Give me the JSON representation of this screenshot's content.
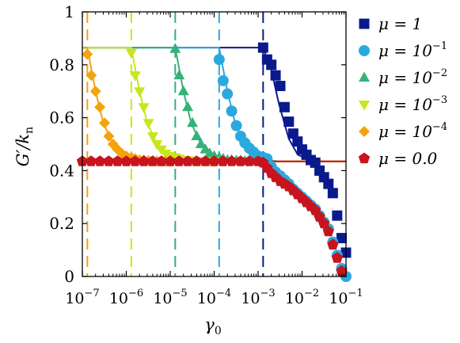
{
  "chart_data": {
    "type": "scatter",
    "title": "",
    "xlabel": "γ",
    "xlabel_sub": "0",
    "ylabel": "G′/k",
    "ylabel_sub": "n",
    "xscale": "log",
    "xlim": [
      1e-07,
      0.1
    ],
    "ylim": [
      0,
      1
    ],
    "grid": false,
    "legend_position": "right",
    "x_ticks": [
      {
        "value": 1e-07,
        "base": "10",
        "exp": "−7"
      },
      {
        "value": 1e-06,
        "base": "10",
        "exp": "−6"
      },
      {
        "value": 1e-05,
        "base": "10",
        "exp": "−5"
      },
      {
        "value": 0.0001,
        "base": "10",
        "exp": "−4"
      },
      {
        "value": 0.001,
        "base": "10",
        "exp": "−3"
      },
      {
        "value": 0.01,
        "base": "10",
        "exp": "−2"
      },
      {
        "value": 0.1,
        "base": "10",
        "exp": "−1"
      }
    ],
    "y_ticks": [
      {
        "value": 0,
        "label": "0"
      },
      {
        "value": 0.2,
        "label": "0.2"
      },
      {
        "value": 0.4,
        "label": "0.4"
      },
      {
        "value": 0.6,
        "label": "0.6"
      },
      {
        "value": 0.8,
        "label": "0.8"
      },
      {
        "value": 1,
        "label": "1"
      }
    ],
    "series": [
      {
        "name": "μ = 1",
        "label_main": "μ = 1",
        "label_exp": "",
        "color": "#0a1a8c",
        "marker": "square",
        "critical_strain": 0.0013,
        "points": [
          [
            0.0013,
            0.865
          ],
          [
            0.0016,
            0.82
          ],
          [
            0.002,
            0.8
          ],
          [
            0.0025,
            0.76
          ],
          [
            0.0032,
            0.72
          ],
          [
            0.004,
            0.64
          ],
          [
            0.005,
            0.585
          ],
          [
            0.0063,
            0.54
          ],
          [
            0.0079,
            0.51
          ],
          [
            0.01,
            0.48
          ],
          [
            0.0126,
            0.46
          ],
          [
            0.0158,
            0.44
          ],
          [
            0.02,
            0.43
          ],
          [
            0.025,
            0.4
          ],
          [
            0.0316,
            0.375
          ],
          [
            0.0398,
            0.35
          ],
          [
            0.0501,
            0.315
          ],
          [
            0.063,
            0.23
          ],
          [
            0.0794,
            0.145
          ],
          [
            0.1,
            0.09
          ]
        ],
        "curve": [
          [
            1e-07,
            0.865
          ],
          [
            0.0013,
            0.865
          ],
          [
            0.002,
            0.78
          ],
          [
            0.003,
            0.65
          ],
          [
            0.005,
            0.52
          ],
          [
            0.008,
            0.46
          ],
          [
            0.015,
            0.44
          ],
          [
            0.03,
            0.435
          ],
          [
            0.1,
            0.435
          ]
        ]
      },
      {
        "name": "μ = 10^-1",
        "label_main": "μ = 10",
        "label_exp": "−1",
        "color": "#2aa9df",
        "marker": "circle",
        "critical_strain": 0.00013,
        "points": [
          [
            0.00013,
            0.82
          ],
          [
            0.00016,
            0.74
          ],
          [
            0.0002,
            0.69
          ],
          [
            0.00025,
            0.625
          ],
          [
            0.00032,
            0.57
          ],
          [
            0.0004,
            0.53
          ],
          [
            0.0005,
            0.505
          ],
          [
            0.00063,
            0.485
          ],
          [
            0.00079,
            0.47
          ],
          [
            0.001,
            0.455
          ],
          [
            0.0013,
            0.45
          ],
          [
            0.0016,
            0.445
          ],
          [
            0.002,
            0.415
          ],
          [
            0.0025,
            0.395
          ],
          [
            0.0032,
            0.38
          ],
          [
            0.004,
            0.365
          ],
          [
            0.005,
            0.35
          ],
          [
            0.0063,
            0.33
          ],
          [
            0.0079,
            0.315
          ],
          [
            0.01,
            0.3
          ],
          [
            0.0126,
            0.285
          ],
          [
            0.0158,
            0.27
          ],
          [
            0.02,
            0.255
          ],
          [
            0.025,
            0.23
          ],
          [
            0.0316,
            0.205
          ],
          [
            0.0398,
            0.18
          ],
          [
            0.0501,
            0.13
          ],
          [
            0.063,
            0.08
          ],
          [
            0.0794,
            0.03
          ],
          [
            0.1,
            0.0
          ]
        ],
        "curve": [
          [
            1e-07,
            0.865
          ],
          [
            0.00013,
            0.865
          ],
          [
            0.0002,
            0.7
          ],
          [
            0.0003,
            0.58
          ],
          [
            0.0005,
            0.5
          ],
          [
            0.0008,
            0.46
          ],
          [
            0.0015,
            0.44
          ],
          [
            0.003,
            0.435
          ],
          [
            0.1,
            0.435
          ]
        ]
      },
      {
        "name": "μ = 10^-2",
        "label_main": "μ = 10",
        "label_exp": "−2",
        "color": "#34b27a",
        "marker": "triangle-up",
        "critical_strain": 1.3e-05,
        "points": [
          [
            1.3e-05,
            0.86
          ],
          [
            1.6e-05,
            0.76
          ],
          [
            2e-05,
            0.7
          ],
          [
            2.5e-05,
            0.64
          ],
          [
            3.2e-05,
            0.58
          ],
          [
            4e-05,
            0.53
          ],
          [
            5e-05,
            0.5
          ],
          [
            6.3e-05,
            0.48
          ],
          [
            7.9e-05,
            0.465
          ],
          [
            0.0001,
            0.455
          ],
          [
            0.00013,
            0.45
          ],
          [
            0.00016,
            0.445
          ],
          [
            0.0002,
            0.44
          ],
          [
            0.00025,
            0.44
          ],
          [
            0.00032,
            0.438
          ],
          [
            0.0004,
            0.437
          ],
          [
            0.0005,
            0.436
          ],
          [
            0.00063,
            0.436
          ],
          [
            0.00079,
            0.435
          ],
          [
            0.001,
            0.435
          ]
        ],
        "curve": [
          [
            1e-07,
            0.865
          ],
          [
            1.3e-05,
            0.865
          ],
          [
            2e-05,
            0.7
          ],
          [
            3e-05,
            0.58
          ],
          [
            5e-05,
            0.5
          ],
          [
            8e-05,
            0.46
          ],
          [
            0.00015,
            0.44
          ],
          [
            0.0003,
            0.435
          ],
          [
            0.1,
            0.435
          ]
        ]
      },
      {
        "name": "μ = 10^-3",
        "label_main": "μ = 10",
        "label_exp": "−3",
        "color": "#c8e619",
        "marker": "triangle-down",
        "critical_strain": 1.3e-06,
        "points": [
          [
            1.3e-06,
            0.845
          ],
          [
            1.6e-06,
            0.76
          ],
          [
            2e-06,
            0.7
          ],
          [
            2.5e-06,
            0.64
          ],
          [
            3.2e-06,
            0.58
          ],
          [
            4e-06,
            0.53
          ],
          [
            5e-06,
            0.5
          ],
          [
            6.3e-06,
            0.48
          ],
          [
            7.9e-06,
            0.465
          ],
          [
            1e-05,
            0.455
          ],
          [
            1.3e-05,
            0.45
          ],
          [
            1.6e-05,
            0.445
          ],
          [
            2e-05,
            0.44
          ],
          [
            2.5e-05,
            0.44
          ],
          [
            3.2e-05,
            0.438
          ],
          [
            4e-05,
            0.437
          ],
          [
            5e-05,
            0.436
          ],
          [
            6.3e-05,
            0.436
          ],
          [
            7.9e-05,
            0.435
          ],
          [
            0.0001,
            0.435
          ]
        ],
        "curve": [
          [
            1e-07,
            0.865
          ],
          [
            1.3e-06,
            0.865
          ],
          [
            2e-06,
            0.7
          ],
          [
            3e-06,
            0.58
          ],
          [
            5e-06,
            0.5
          ],
          [
            8e-06,
            0.46
          ],
          [
            1.5e-05,
            0.44
          ],
          [
            3e-05,
            0.435
          ],
          [
            0.1,
            0.435
          ]
        ]
      },
      {
        "name": "μ = 10^-4",
        "label_main": "μ = 10",
        "label_exp": "−4",
        "color": "#f5a30a",
        "marker": "diamond",
        "critical_strain": 1.3e-07,
        "points": [
          [
            1.3e-07,
            0.84
          ],
          [
            1.6e-07,
            0.76
          ],
          [
            2e-07,
            0.7
          ],
          [
            2.5e-07,
            0.64
          ],
          [
            3.2e-07,
            0.58
          ],
          [
            4e-07,
            0.53
          ],
          [
            5e-07,
            0.5
          ],
          [
            6.3e-07,
            0.48
          ],
          [
            7.9e-07,
            0.465
          ],
          [
            1e-06,
            0.455
          ],
          [
            1.3e-06,
            0.45
          ],
          [
            1.6e-06,
            0.445
          ],
          [
            2e-06,
            0.44
          ],
          [
            2.5e-06,
            0.44
          ],
          [
            3.2e-06,
            0.438
          ],
          [
            4e-06,
            0.437
          ],
          [
            5e-06,
            0.436
          ],
          [
            6.3e-06,
            0.436
          ],
          [
            7.9e-06,
            0.435
          ],
          [
            1e-05,
            0.435
          ]
        ],
        "curve": [
          [
            1e-07,
            0.865
          ],
          [
            1.3e-07,
            0.865
          ],
          [
            2e-07,
            0.7
          ],
          [
            3e-07,
            0.58
          ],
          [
            5e-07,
            0.5
          ],
          [
            8e-07,
            0.46
          ],
          [
            1.5e-06,
            0.44
          ],
          [
            3e-06,
            0.435
          ],
          [
            0.1,
            0.435
          ]
        ]
      },
      {
        "name": "μ = 0.0",
        "label_main": "μ = 0.0",
        "label_exp": "",
        "color": "#c8141e",
        "marker": "pentagon",
        "critical_strain": null,
        "points": [
          [
            1e-07,
            0.435
          ],
          [
            1.58e-07,
            0.435
          ],
          [
            2.51e-07,
            0.435
          ],
          [
            3.98e-07,
            0.435
          ],
          [
            6.31e-07,
            0.435
          ],
          [
            1e-06,
            0.435
          ],
          [
            1.58e-06,
            0.435
          ],
          [
            2.51e-06,
            0.435
          ],
          [
            3.98e-06,
            0.435
          ],
          [
            6.31e-06,
            0.435
          ],
          [
            1e-05,
            0.435
          ],
          [
            1.58e-05,
            0.435
          ],
          [
            2.51e-05,
            0.435
          ],
          [
            3.98e-05,
            0.435
          ],
          [
            6.31e-05,
            0.435
          ],
          [
            0.0001,
            0.435
          ],
          [
            0.000158,
            0.435
          ],
          [
            0.000251,
            0.435
          ],
          [
            0.000398,
            0.435
          ],
          [
            0.000631,
            0.435
          ],
          [
            0.001,
            0.435
          ],
          [
            0.0013,
            0.43
          ],
          [
            0.0016,
            0.41
          ],
          [
            0.002,
            0.39
          ],
          [
            0.0025,
            0.375
          ],
          [
            0.0032,
            0.36
          ],
          [
            0.004,
            0.35
          ],
          [
            0.005,
            0.34
          ],
          [
            0.0063,
            0.325
          ],
          [
            0.0079,
            0.31
          ],
          [
            0.01,
            0.295
          ],
          [
            0.0126,
            0.28
          ],
          [
            0.0158,
            0.265
          ],
          [
            0.02,
            0.25
          ],
          [
            0.025,
            0.225
          ],
          [
            0.0316,
            0.2
          ],
          [
            0.0398,
            0.17
          ],
          [
            0.0501,
            0.12
          ],
          [
            0.063,
            0.07
          ],
          [
            0.0794,
            0.02
          ]
        ],
        "curve": [
          [
            1e-07,
            0.435
          ],
          [
            0.1,
            0.435
          ]
        ]
      }
    ]
  }
}
